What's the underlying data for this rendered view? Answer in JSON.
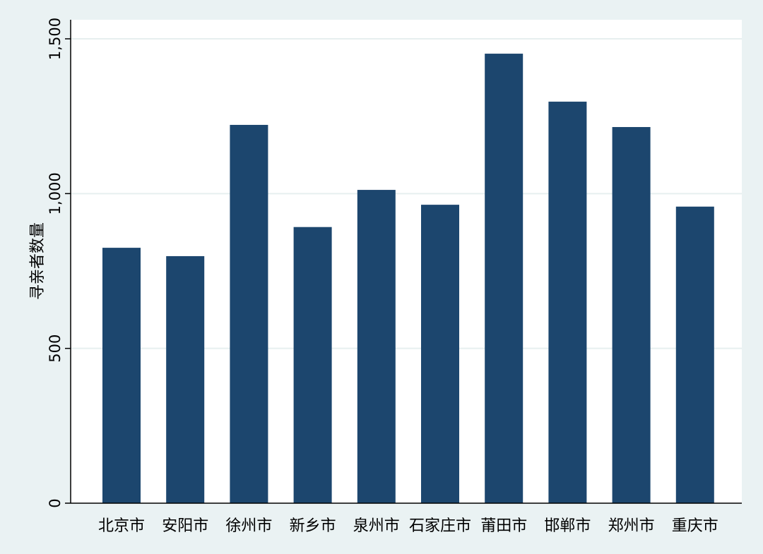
{
  "chart_data": {
    "type": "bar",
    "title": "",
    "xlabel": "",
    "ylabel": "寻亲者数量",
    "categories": [
      "北京市",
      "安阳市",
      "徐州市",
      "新乡市",
      "泉州市",
      "石家庄市",
      "莆田市",
      "邯郸市",
      "郑州市",
      "重庆市"
    ],
    "values": [
      825,
      798,
      1222,
      892,
      1012,
      964,
      1452,
      1297,
      1215,
      958
    ],
    "ylim": [
      0,
      1500
    ],
    "yticks": [
      0,
      500,
      1000,
      1500
    ],
    "ytick_labels": [
      "0",
      "500",
      "1,000",
      "1,500"
    ],
    "grid": true,
    "legend": "none",
    "colors": {
      "bar": "#1c466e",
      "background": "#eaf2f3",
      "plot_background": "#ffffff",
      "grid": "#e6efef",
      "axis": "#000000"
    }
  }
}
